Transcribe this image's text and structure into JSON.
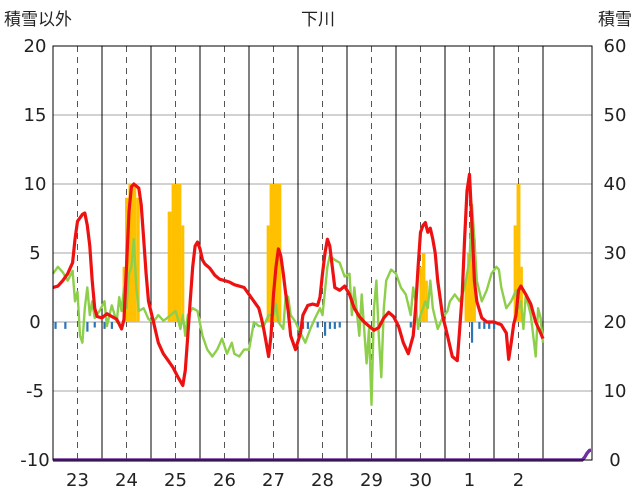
{
  "chart_data": {
    "type": "line",
    "title": "下川",
    "y_left_label": "積雪以外",
    "y_right_label": "積雪",
    "y_left_range": [
      -10,
      20
    ],
    "y_left_ticks": [
      20,
      15,
      10,
      5,
      0,
      -5,
      -10
    ],
    "y_right_range": [
      0,
      60
    ],
    "y_right_ticks": [
      60,
      50,
      40,
      30,
      20,
      10,
      0
    ],
    "x_range": [
      22.5,
      33.5
    ],
    "day_ticks": [
      {
        "label": "23",
        "x": 23
      },
      {
        "label": "24",
        "x": 24
      },
      {
        "label": "25",
        "x": 25
      },
      {
        "label": "26",
        "x": 26
      },
      {
        "label": "27",
        "x": 27
      },
      {
        "label": "28",
        "x": 28
      },
      {
        "label": "29",
        "x": 29
      },
      {
        "label": "30",
        "x": 30
      },
      {
        "label": "1",
        "x": 31
      },
      {
        "label": "2",
        "x": 32
      }
    ],
    "grid": "dashed-vertical",
    "colors": {
      "red_series": "#ee1111",
      "green_series": "#8dcf4a",
      "orange_bars": "#ffc000",
      "blue_bars": "#2e75b6",
      "purple_series": "#7030a0"
    },
    "series_red_points": [
      [
        22.5,
        2.5
      ],
      [
        22.6,
        2.6
      ],
      [
        22.7,
        3.0
      ],
      [
        22.8,
        3.5
      ],
      [
        22.9,
        4.3
      ],
      [
        22.95,
        6.0
      ],
      [
        23.0,
        7.3
      ],
      [
        23.1,
        7.8
      ],
      [
        23.15,
        7.9
      ],
      [
        23.2,
        7.0
      ],
      [
        23.25,
        5.5
      ],
      [
        23.3,
        3.0
      ],
      [
        23.35,
        1.0
      ],
      [
        23.4,
        0.4
      ],
      [
        23.5,
        0.3
      ],
      [
        23.6,
        0.6
      ],
      [
        23.7,
        0.4
      ],
      [
        23.8,
        0.2
      ],
      [
        23.9,
        -0.5
      ],
      [
        23.95,
        0.2
      ],
      [
        24.0,
        4.0
      ],
      [
        24.05,
        8.0
      ],
      [
        24.1,
        9.8
      ],
      [
        24.15,
        10.0
      ],
      [
        24.25,
        9.7
      ],
      [
        24.3,
        8.5
      ],
      [
        24.35,
        6.0
      ],
      [
        24.4,
        3.5
      ],
      [
        24.45,
        1.5
      ],
      [
        24.55,
        0.0
      ],
      [
        24.65,
        -1.5
      ],
      [
        24.75,
        -2.3
      ],
      [
        24.85,
        -2.8
      ],
      [
        24.95,
        -3.3
      ],
      [
        25.05,
        -4.0
      ],
      [
        25.1,
        -4.3
      ],
      [
        25.15,
        -4.6
      ],
      [
        25.2,
        -3.5
      ],
      [
        25.25,
        -1.0
      ],
      [
        25.3,
        1.5
      ],
      [
        25.35,
        4.0
      ],
      [
        25.4,
        5.5
      ],
      [
        25.45,
        5.8
      ],
      [
        25.5,
        5.3
      ],
      [
        25.55,
        4.5
      ],
      [
        25.6,
        4.2
      ],
      [
        25.7,
        3.9
      ],
      [
        25.8,
        3.4
      ],
      [
        25.9,
        3.1
      ],
      [
        26.0,
        3.0
      ],
      [
        26.1,
        2.9
      ],
      [
        26.2,
        2.7
      ],
      [
        26.3,
        2.6
      ],
      [
        26.4,
        2.5
      ],
      [
        26.5,
        2.0
      ],
      [
        26.6,
        1.5
      ],
      [
        26.7,
        1.0
      ],
      [
        26.75,
        0.3
      ],
      [
        26.8,
        -0.5
      ],
      [
        26.85,
        -1.5
      ],
      [
        26.9,
        -2.5
      ],
      [
        26.95,
        -1.0
      ],
      [
        27.0,
        2.0
      ],
      [
        27.05,
        4.0
      ],
      [
        27.1,
        5.3
      ],
      [
        27.15,
        4.8
      ],
      [
        27.2,
        3.5
      ],
      [
        27.25,
        2.0
      ],
      [
        27.3,
        0.8
      ],
      [
        27.35,
        -1.0
      ],
      [
        27.45,
        -2.0
      ],
      [
        27.55,
        -0.8
      ],
      [
        27.6,
        0.5
      ],
      [
        27.7,
        1.2
      ],
      [
        27.8,
        1.3
      ],
      [
        27.9,
        1.2
      ],
      [
        27.95,
        1.8
      ],
      [
        28.0,
        3.5
      ],
      [
        28.05,
        5.0
      ],
      [
        28.1,
        6.0
      ],
      [
        28.15,
        5.5
      ],
      [
        28.2,
        4.0
      ],
      [
        28.25,
        2.5
      ],
      [
        28.35,
        2.3
      ],
      [
        28.45,
        2.6
      ],
      [
        28.55,
        2.0
      ],
      [
        28.65,
        1.0
      ],
      [
        28.75,
        0.4
      ],
      [
        28.85,
        0.0
      ],
      [
        28.95,
        -0.3
      ],
      [
        29.05,
        -0.6
      ],
      [
        29.15,
        -0.4
      ],
      [
        29.25,
        0.3
      ],
      [
        29.35,
        0.7
      ],
      [
        29.45,
        0.4
      ],
      [
        29.55,
        -0.3
      ],
      [
        29.65,
        -1.5
      ],
      [
        29.75,
        -2.3
      ],
      [
        29.85,
        -1.0
      ],
      [
        29.9,
        1.0
      ],
      [
        29.95,
        4.0
      ],
      [
        30.0,
        6.5
      ],
      [
        30.05,
        7.0
      ],
      [
        30.1,
        7.2
      ],
      [
        30.15,
        6.5
      ],
      [
        30.2,
        6.8
      ],
      [
        30.25,
        6.0
      ],
      [
        30.3,
        5.0
      ],
      [
        30.35,
        3.0
      ],
      [
        30.45,
        0.5
      ],
      [
        30.55,
        -1.0
      ],
      [
        30.65,
        -2.5
      ],
      [
        30.75,
        -2.8
      ],
      [
        30.8,
        -0.5
      ],
      [
        30.85,
        2.0
      ],
      [
        30.9,
        6.0
      ],
      [
        30.95,
        9.5
      ],
      [
        31.0,
        10.7
      ],
      [
        31.05,
        7.0
      ],
      [
        31.1,
        3.0
      ],
      [
        31.15,
        1.5
      ],
      [
        31.25,
        0.3
      ],
      [
        31.35,
        0.0
      ],
      [
        31.5,
        0.0
      ],
      [
        31.65,
        -0.2
      ],
      [
        31.75,
        -0.8
      ],
      [
        31.8,
        -2.7
      ],
      [
        31.85,
        -1.5
      ],
      [
        31.9,
        -0.2
      ],
      [
        31.95,
        0.5
      ],
      [
        32.0,
        2.3
      ],
      [
        32.05,
        2.6
      ],
      [
        32.15,
        2.0
      ],
      [
        32.25,
        1.3
      ],
      [
        32.35,
        0.0
      ],
      [
        32.45,
        -0.8
      ],
      [
        32.5,
        -1.2
      ]
    ],
    "series_green_points": [
      [
        22.5,
        3.5
      ],
      [
        22.6,
        4.0
      ],
      [
        22.7,
        3.6
      ],
      [
        22.8,
        3.0
      ],
      [
        22.9,
        3.7
      ],
      [
        22.95,
        1.5
      ],
      [
        23.0,
        2.2
      ],
      [
        23.05,
        -1.0
      ],
      [
        23.1,
        -1.5
      ],
      [
        23.15,
        1.0
      ],
      [
        23.2,
        2.5
      ],
      [
        23.25,
        0.5
      ],
      [
        23.3,
        1.5
      ],
      [
        23.35,
        0.3
      ],
      [
        23.45,
        0.8
      ],
      [
        23.55,
        1.5
      ],
      [
        23.6,
        -0.3
      ],
      [
        23.7,
        1.2
      ],
      [
        23.8,
        0.0
      ],
      [
        23.85,
        1.8
      ],
      [
        23.9,
        0.8
      ],
      [
        23.95,
        2.5
      ],
      [
        24.0,
        1.0
      ],
      [
        24.05,
        3.5
      ],
      [
        24.1,
        4.0
      ],
      [
        24.15,
        6.0
      ],
      [
        24.2,
        2.5
      ],
      [
        24.25,
        0.8
      ],
      [
        24.35,
        1.0
      ],
      [
        24.45,
        0.2
      ],
      [
        24.55,
        0.0
      ],
      [
        24.65,
        0.5
      ],
      [
        24.75,
        0.1
      ],
      [
        24.8,
        0.2
      ],
      [
        25.0,
        0.8
      ],
      [
        25.05,
        0.2
      ],
      [
        25.1,
        -0.5
      ],
      [
        25.15,
        0.5
      ],
      [
        25.2,
        -1.0
      ],
      [
        25.25,
        0.5
      ],
      [
        25.35,
        1.0
      ],
      [
        25.45,
        0.8
      ],
      [
        25.55,
        -1.0
      ],
      [
        25.65,
        -2.0
      ],
      [
        25.75,
        -2.5
      ],
      [
        25.85,
        -2.0
      ],
      [
        25.95,
        -1.2
      ],
      [
        26.05,
        -2.3
      ],
      [
        26.15,
        -1.5
      ],
      [
        26.2,
        -2.3
      ],
      [
        26.3,
        -2.5
      ],
      [
        26.4,
        -2.0
      ],
      [
        26.5,
        -2.0
      ],
      [
        26.55,
        -1.0
      ],
      [
        26.6,
        0.0
      ],
      [
        26.7,
        -0.3
      ],
      [
        26.8,
        -0.3
      ],
      [
        26.9,
        0.5
      ],
      [
        27.0,
        0.5
      ],
      [
        27.05,
        1.3
      ],
      [
        27.1,
        0.0
      ],
      [
        27.2,
        -0.5
      ],
      [
        27.25,
        2.0
      ],
      [
        27.3,
        1.8
      ],
      [
        27.35,
        0.5
      ],
      [
        27.45,
        0.0
      ],
      [
        27.55,
        -0.8
      ],
      [
        27.65,
        -1.5
      ],
      [
        27.75,
        -0.5
      ],
      [
        27.85,
        0.3
      ],
      [
        27.95,
        1.0
      ],
      [
        28.0,
        0.5
      ],
      [
        28.1,
        4.0
      ],
      [
        28.15,
        4.8
      ],
      [
        28.25,
        4.5
      ],
      [
        28.35,
        4.3
      ],
      [
        28.45,
        3.3
      ],
      [
        28.55,
        3.5
      ],
      [
        28.6,
        0.5
      ],
      [
        28.65,
        2.5
      ],
      [
        28.75,
        -1.0
      ],
      [
        28.8,
        2.0
      ],
      [
        28.9,
        -3.0
      ],
      [
        28.95,
        -0.5
      ],
      [
        29.0,
        -6.0
      ],
      [
        29.05,
        1.0
      ],
      [
        29.1,
        3.0
      ],
      [
        29.15,
        -1.0
      ],
      [
        29.2,
        -4.0
      ],
      [
        29.25,
        1.0
      ],
      [
        29.3,
        3.0
      ],
      [
        29.4,
        3.8
      ],
      [
        29.5,
        3.5
      ],
      [
        29.6,
        2.5
      ],
      [
        29.7,
        2.0
      ],
      [
        29.8,
        0.5
      ],
      [
        29.85,
        2.5
      ],
      [
        29.9,
        1.5
      ],
      [
        29.95,
        -0.5
      ],
      [
        30.0,
        0.5
      ],
      [
        30.1,
        1.5
      ],
      [
        30.15,
        1.0
      ],
      [
        30.2,
        3.0
      ],
      [
        30.25,
        1.0
      ],
      [
        30.35,
        -0.5
      ],
      [
        30.45,
        0.3
      ],
      [
        30.55,
        0.8
      ],
      [
        30.6,
        1.5
      ],
      [
        30.7,
        2.0
      ],
      [
        30.8,
        1.5
      ],
      [
        30.9,
        2.5
      ],
      [
        30.95,
        3.5
      ],
      [
        31.0,
        4.5
      ],
      [
        31.05,
        8.5
      ],
      [
        31.1,
        6.0
      ],
      [
        31.15,
        3.0
      ],
      [
        31.25,
        1.5
      ],
      [
        31.35,
        2.3
      ],
      [
        31.45,
        3.5
      ],
      [
        31.55,
        4.0
      ],
      [
        31.6,
        3.8
      ],
      [
        31.65,
        2.5
      ],
      [
        31.75,
        1.0
      ],
      [
        31.85,
        1.5
      ],
      [
        31.95,
        2.3
      ],
      [
        32.0,
        1.0
      ],
      [
        32.05,
        1.5
      ],
      [
        32.1,
        -0.5
      ],
      [
        32.15,
        2.0
      ],
      [
        32.25,
        0.5
      ],
      [
        32.35,
        -2.5
      ],
      [
        32.4,
        1.0
      ],
      [
        32.45,
        0.3
      ],
      [
        32.5,
        -1.5
      ]
    ],
    "orange_bars": [
      {
        "x": 23.92,
        "w": 0.05,
        "h": 4
      },
      {
        "x": 23.97,
        "w": 0.07,
        "h": 9
      },
      {
        "x": 24.04,
        "w": 0.16,
        "h": 10
      },
      {
        "x": 24.2,
        "w": 0.07,
        "h": 9
      },
      {
        "x": 24.84,
        "w": 0.08,
        "h": 8
      },
      {
        "x": 24.92,
        "w": 0.2,
        "h": 10
      },
      {
        "x": 25.12,
        "w": 0.06,
        "h": 7
      },
      {
        "x": 26.86,
        "w": 0.06,
        "h": 7
      },
      {
        "x": 26.92,
        "w": 0.24,
        "h": 10
      },
      {
        "x": 29.98,
        "w": 0.05,
        "h": 4
      },
      {
        "x": 30.03,
        "w": 0.07,
        "h": 5
      },
      {
        "x": 30.1,
        "w": 0.05,
        "h": 3
      },
      {
        "x": 30.9,
        "w": 0.05,
        "h": 3
      },
      {
        "x": 30.95,
        "w": 0.08,
        "h": 5
      },
      {
        "x": 31.03,
        "w": 0.1,
        "h": 6
      },
      {
        "x": 31.9,
        "w": 0.06,
        "h": 7
      },
      {
        "x": 31.96,
        "w": 0.08,
        "h": 10
      },
      {
        "x": 32.04,
        "w": 0.05,
        "h": 4
      }
    ],
    "blue_bars": [
      {
        "x": 22.55,
        "h": -0.5
      },
      {
        "x": 22.75,
        "h": -0.5
      },
      {
        "x": 23.2,
        "h": -0.7
      },
      {
        "x": 23.35,
        "h": -0.4
      },
      {
        "x": 23.55,
        "h": -0.5
      },
      {
        "x": 23.7,
        "h": -0.5
      },
      {
        "x": 26.6,
        "h": -0.4
      },
      {
        "x": 27.5,
        "h": -0.4
      },
      {
        "x": 27.6,
        "h": -0.5
      },
      {
        "x": 27.7,
        "h": -0.5
      },
      {
        "x": 27.9,
        "h": -0.4
      },
      {
        "x": 28.05,
        "h": -1.0
      },
      {
        "x": 28.15,
        "h": -0.5
      },
      {
        "x": 28.25,
        "h": -0.5
      },
      {
        "x": 28.35,
        "h": -0.4
      },
      {
        "x": 29.8,
        "h": -0.4
      },
      {
        "x": 31.05,
        "h": -1.5
      },
      {
        "x": 31.2,
        "h": -0.5
      },
      {
        "x": 31.3,
        "h": -0.5
      },
      {
        "x": 31.4,
        "h": -0.5
      },
      {
        "x": 31.5,
        "h": -0.5
      }
    ],
    "purple_points": [
      [
        22.5,
        -10
      ],
      [
        33.3,
        -10
      ],
      [
        33.35,
        -9.8
      ],
      [
        33.4,
        -9.5
      ],
      [
        33.45,
        -9.3
      ],
      [
        33.48,
        -9.3
      ]
    ]
  }
}
